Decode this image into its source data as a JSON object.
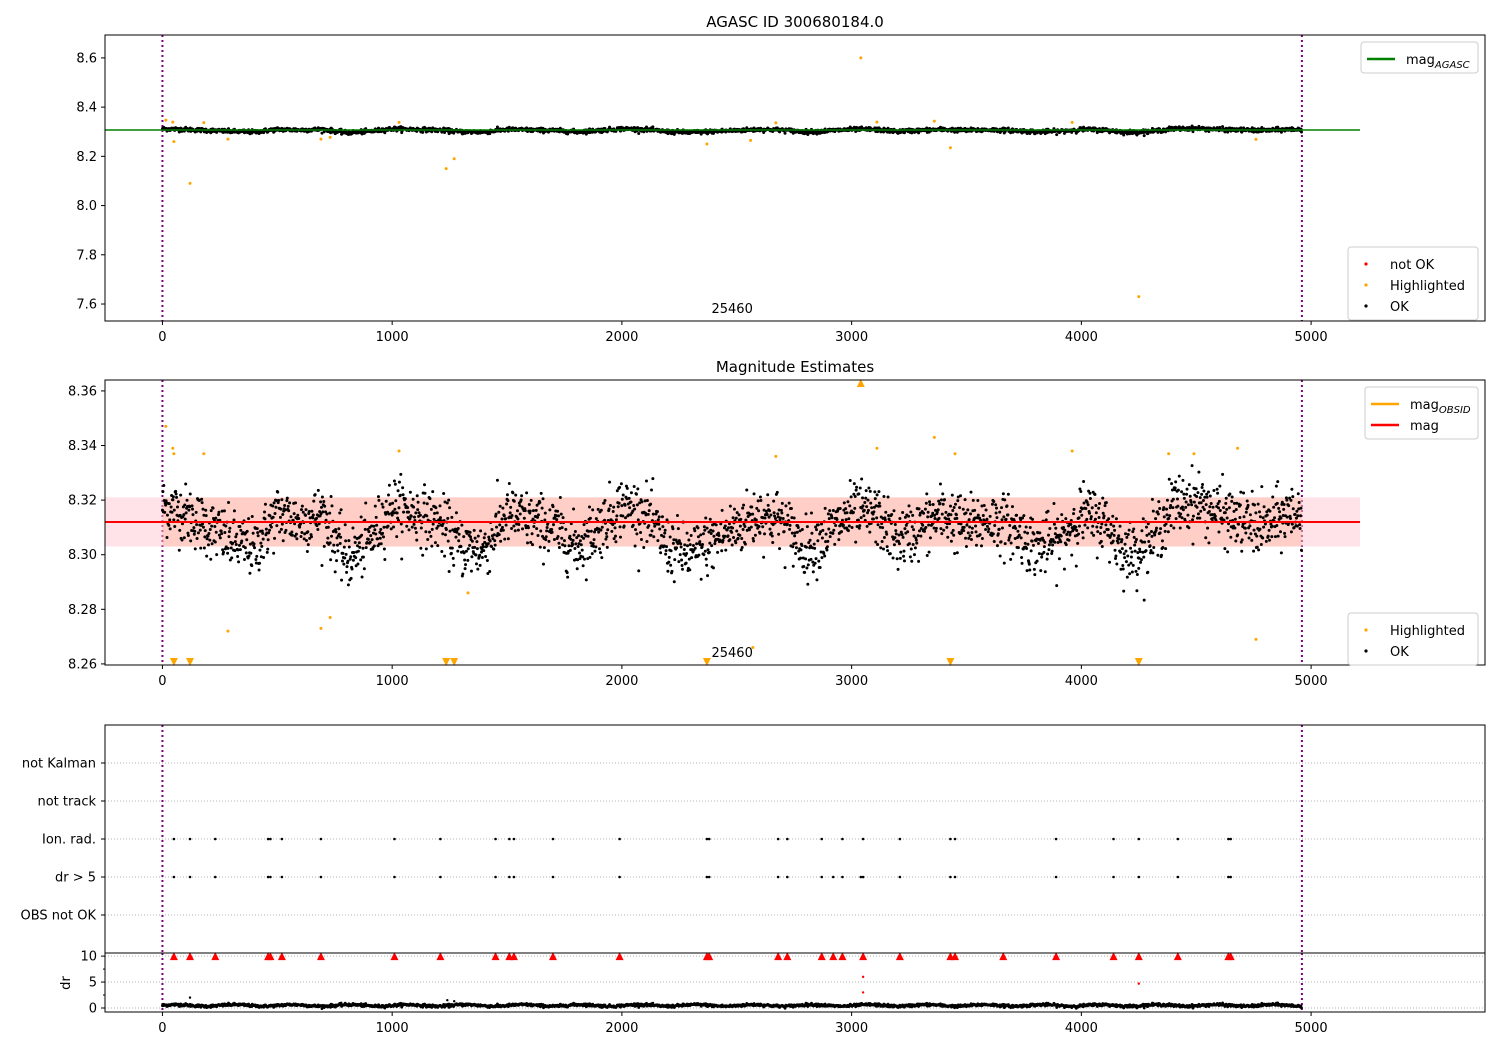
{
  "chart_data": [
    {
      "type": "scatter",
      "title": "AGASC ID 300680184.0",
      "xlim": [
        -250,
        5757
      ],
      "ylim": [
        7.531,
        8.693
      ],
      "xticks": [
        "0",
        "1000",
        "2000",
        "3000",
        "4000",
        "5000"
      ],
      "yticks": [
        "7.6",
        "7.8",
        "8.0",
        "8.2",
        "8.4",
        "8.6"
      ],
      "annotation": "25460",
      "mag_agasc": 8.307,
      "line_xrange": [
        -250,
        5213
      ],
      "boundaries_x": [
        0,
        4960
      ],
      "legend_lines": [
        {
          "label": "mag",
          "sub": "AGASC",
          "color": "#008000"
        }
      ],
      "legend_points": [
        {
          "label": "not OK",
          "color": "#ff0000"
        },
        {
          "label": "Highlighted",
          "color": "#ffa500"
        },
        {
          "label": "OK",
          "color": "#000000"
        }
      ],
      "highlighted": [
        [
          15,
          8.347
        ],
        [
          45,
          8.339
        ],
        [
          50,
          8.26
        ],
        [
          120,
          8.09
        ],
        [
          180,
          8.337
        ],
        [
          285,
          8.27
        ],
        [
          690,
          8.27
        ],
        [
          730,
          8.277
        ],
        [
          1030,
          8.338
        ],
        [
          1235,
          8.15
        ],
        [
          1270,
          8.19
        ],
        [
          2370,
          8.25
        ],
        [
          2560,
          8.265
        ],
        [
          2670,
          8.336
        ],
        [
          3040,
          8.6
        ],
        [
          3110,
          8.339
        ],
        [
          3360,
          8.343
        ],
        [
          3430,
          8.235
        ],
        [
          3960,
          8.338
        ],
        [
          4250,
          7.63
        ],
        [
          4760,
          8.269
        ]
      ]
    },
    {
      "type": "scatter",
      "title": "Magnitude Estimates",
      "xlim": [
        -250,
        5757
      ],
      "ylim": [
        8.2596,
        8.364
      ],
      "xticks": [
        "0",
        "1000",
        "2000",
        "3000",
        "4000",
        "5000"
      ],
      "yticks": [
        "8.26",
        "8.28",
        "8.30",
        "8.32",
        "8.34",
        "8.36"
      ],
      "annotation": "25460",
      "mag": 8.312,
      "mag_band": [
        8.303,
        8.321
      ],
      "legend_lines": [
        {
          "label": "mag",
          "sub": "OBSID",
          "color": "#ffa500"
        },
        {
          "label": "mag",
          "sub": "",
          "color": "#ff0000"
        }
      ],
      "legend_points": [
        {
          "label": "Highlighted",
          "color": "#ffa500"
        },
        {
          "label": "OK",
          "color": "#000000"
        }
      ],
      "ok_points_count": 2500,
      "ok_scatter_sigma": 0.006,
      "trend_x": [
        0,
        100,
        200,
        300,
        400,
        500,
        600,
        700,
        800,
        900,
        1000,
        1100,
        1200,
        1300,
        1400,
        1500,
        1600,
        1700,
        1800,
        1900,
        2000,
        2100,
        2200,
        2300,
        2400,
        2500,
        2600,
        2700,
        2800,
        2900,
        3000,
        3100,
        3200,
        3300,
        3400,
        3500,
        3600,
        3700,
        3800,
        3900,
        4000,
        4100,
        4200,
        4300,
        4400,
        4500,
        4600,
        4700,
        4800,
        4900,
        4960
      ],
      "trend_mag": [
        8.318,
        8.315,
        8.31,
        8.305,
        8.302,
        8.315,
        8.312,
        8.315,
        8.298,
        8.305,
        8.318,
        8.315,
        8.312,
        8.303,
        8.302,
        8.315,
        8.312,
        8.31,
        8.303,
        8.31,
        8.318,
        8.315,
        8.303,
        8.3,
        8.305,
        8.31,
        8.315,
        8.312,
        8.302,
        8.308,
        8.315,
        8.315,
        8.305,
        8.31,
        8.315,
        8.31,
        8.313,
        8.31,
        8.303,
        8.305,
        8.315,
        8.312,
        8.3,
        8.305,
        8.318,
        8.32,
        8.315,
        8.312,
        8.31,
        8.315,
        8.315
      ],
      "highlighted": [
        [
          15,
          8.347
        ],
        [
          45,
          8.339
        ],
        [
          50,
          8.337
        ],
        [
          180,
          8.337
        ],
        [
          285,
          8.272
        ],
        [
          690,
          8.273
        ],
        [
          730,
          8.277
        ],
        [
          1030,
          8.338
        ],
        [
          1330,
          8.286
        ],
        [
          2570,
          8.266
        ],
        [
          2670,
          8.336
        ],
        [
          3110,
          8.339
        ],
        [
          3360,
          8.343
        ],
        [
          3450,
          8.337
        ],
        [
          3960,
          8.338
        ],
        [
          4380,
          8.337
        ],
        [
          4490,
          8.337
        ],
        [
          4680,
          8.339
        ],
        [
          4760,
          8.269
        ]
      ],
      "highlighted_off_top": [
        3040
      ],
      "highlighted_off_bottom": [
        50,
        120,
        1235,
        1270,
        2370,
        3430,
        4250
      ]
    },
    {
      "type": "scatter",
      "title": "",
      "xlim": [
        -250,
        5757
      ],
      "ylim": [
        -1,
        5
      ],
      "categories": [
        "OBS not OK",
        "dr > 5",
        "Ion. rad.",
        "not track",
        "not Kalman"
      ],
      "ion_rad_x": [
        50,
        120,
        230,
        460,
        470,
        520,
        690,
        1010,
        1210,
        1450,
        1510,
        1530,
        1700,
        1990,
        2370,
        2380,
        2680,
        2720,
        2870,
        2960,
        3050,
        3210,
        3430,
        3450,
        3890,
        4140,
        4250,
        4420,
        4640,
        4650
      ],
      "dr5_x": [
        50,
        120,
        230,
        460,
        470,
        520,
        690,
        1010,
        1210,
        1450,
        1510,
        1530,
        1700,
        1990,
        2370,
        2380,
        2680,
        2720,
        2870,
        2920,
        2960,
        3040,
        3050,
        3210,
        3430,
        3450,
        3890,
        4140,
        4250,
        4420,
        4640,
        4650
      ]
    },
    {
      "type": "scatter",
      "title": "",
      "ylabel": "dr",
      "xlim": [
        -250,
        5757
      ],
      "ylim": [
        -0.77,
        10.6
      ],
      "xticks": [
        "0",
        "1000",
        "2000",
        "3000",
        "4000",
        "5000"
      ],
      "yticks": [
        "0",
        "5",
        "10"
      ],
      "dr_typical": 0.5,
      "red_clipped_x": [
        50,
        120,
        230,
        460,
        470,
        520,
        690,
        1010,
        1210,
        1450,
        1510,
        1530,
        1700,
        1990,
        2370,
        2380,
        2680,
        2720,
        2870,
        2920,
        2960,
        3050,
        3210,
        3430,
        3450,
        3660,
        3890,
        4140,
        4250,
        4420,
        4640,
        4650
      ],
      "red_points": [
        [
          3050,
          6.0
        ],
        [
          3050,
          3.0
        ],
        [
          4250,
          4.7
        ]
      ],
      "black_outliers": [
        [
          120,
          2.0
        ],
        [
          1240,
          1.5
        ],
        [
          1270,
          1.3
        ]
      ]
    }
  ]
}
